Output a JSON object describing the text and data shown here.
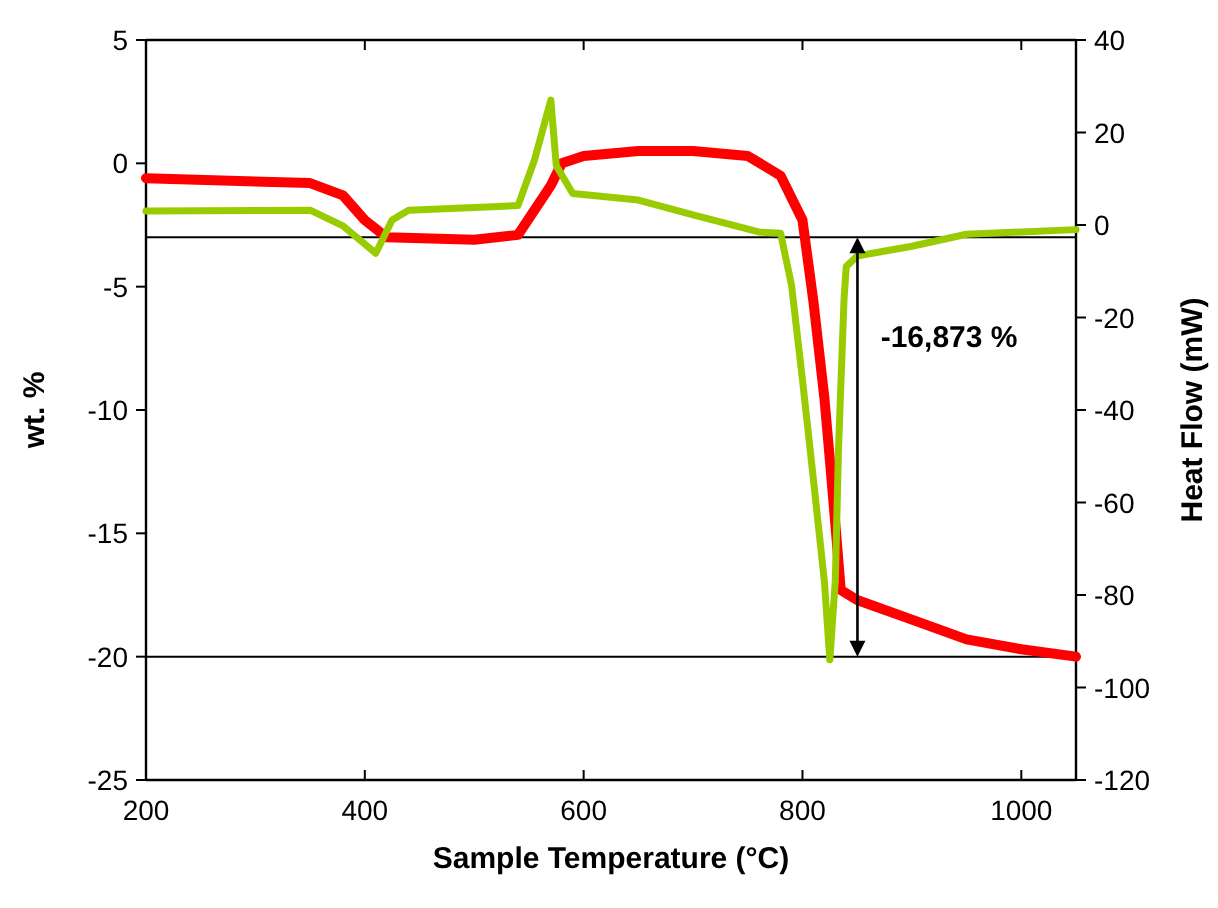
{
  "chart_data": {
    "type": "line",
    "xlabel": "Sample Temperature (°C)",
    "ylabel": "wt. %",
    "y2label": "Heat Flow (mW)",
    "xlim": [
      200,
      1050
    ],
    "xticks": [
      200,
      400,
      600,
      800,
      1000
    ],
    "ylim": [
      -25,
      5
    ],
    "yticks": [
      -25,
      -20,
      -15,
      -10,
      -5,
      0,
      5
    ],
    "y2lim": [
      -120,
      40
    ],
    "y2ticks": [
      -120,
      -100,
      -80,
      -60,
      -40,
      -20,
      0,
      20,
      40
    ],
    "grid": false,
    "marker": "none",
    "line_style": "solid",
    "series": [
      {
        "color": "#ff0000",
        "x": [
          200,
          350,
          380,
          400,
          420,
          500,
          540,
          570,
          580,
          600,
          650,
          700,
          750,
          780,
          800,
          810,
          820,
          825,
          830,
          835,
          850,
          900,
          950,
          1000,
          1050
        ],
        "values": [
          -0.6,
          -0.8,
          -1.3,
          -2.3,
          -3,
          -3.1,
          -2.9,
          -0.9,
          0,
          0.3,
          0.5,
          0.5,
          0.3,
          -0.5,
          -2.3,
          -5.6,
          -9.5,
          -12,
          -14.6,
          -17.3,
          -17.7,
          -18.5,
          -19.3,
          -19.7,
          -20
        ]
      },
      {
        "color": "#99cc00",
        "axis": "y2",
        "x": [
          200,
          350,
          380,
          410,
          425,
          440,
          540,
          555,
          570,
          575,
          590,
          650,
          700,
          760,
          780,
          790,
          800,
          810,
          820,
          825,
          830,
          833,
          838,
          840,
          850,
          900,
          950,
          1000,
          1050
        ],
        "values": [
          3,
          3.2,
          -0.2,
          -6.1,
          1.1,
          3.2,
          4.2,
          14,
          27,
          12.8,
          6.8,
          5.4,
          2.2,
          -1.5,
          -1.8,
          -13,
          -33.5,
          -55,
          -77,
          -94,
          -77,
          -48,
          -16,
          -9,
          -6.7,
          -4.6,
          -2,
          -1.5,
          -1
        ]
      }
    ],
    "ref_lines": [
      {
        "axis": "y",
        "value": -3,
        "color": "#000000"
      },
      {
        "axis": "y",
        "value": -20,
        "color": "#000000"
      }
    ],
    "annotations": [
      "-16,873 %"
    ]
  }
}
